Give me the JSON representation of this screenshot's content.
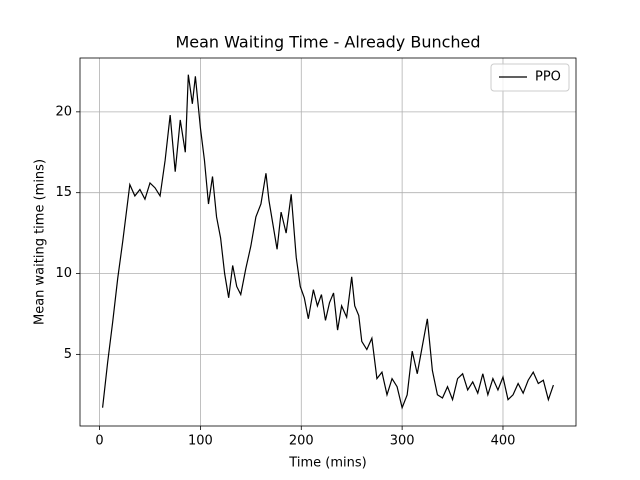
{
  "chart_data": {
    "type": "line",
    "title": "Mean Waiting Time - Already Bunched",
    "x_label": "Time (mins)",
    "y_label": "Mean waiting time (mins)",
    "x": [
      3,
      8,
      13,
      18,
      23,
      28,
      30,
      35,
      40,
      45,
      50,
      55,
      60,
      65,
      70,
      75,
      80,
      85,
      88,
      92,
      95,
      100,
      104,
      108,
      112,
      116,
      120,
      124,
      128,
      132,
      136,
      140,
      145,
      150,
      155,
      160,
      165,
      168,
      172,
      176,
      180,
      185,
      190,
      195,
      199,
      203,
      207,
      212,
      216,
      220,
      224,
      228,
      232,
      236,
      240,
      245,
      250,
      253,
      257,
      260,
      265,
      270,
      275,
      280,
      285,
      290,
      295,
      300,
      305,
      310,
      315,
      320,
      325,
      330,
      335,
      340,
      345,
      350,
      355,
      360,
      365,
      370,
      375,
      380,
      385,
      390,
      395,
      400,
      405,
      410,
      415,
      420,
      425,
      430,
      435,
      440,
      445,
      450
    ],
    "series": [
      {
        "name": "PPO",
        "color": "#000000",
        "values": [
          1.7,
          4.5,
          7,
          9.7,
          12,
          14.5,
          15.5,
          14.8,
          15.2,
          14.6,
          15.6,
          15.3,
          14.8,
          17,
          19.8,
          16.3,
          19.5,
          17.5,
          22.3,
          20.5,
          22.2,
          19,
          17,
          14.3,
          16,
          13.5,
          12.2,
          10,
          8.5,
          10.5,
          9.2,
          8.7,
          10.3,
          11.7,
          13.5,
          14.3,
          16.2,
          14.5,
          13,
          11.5,
          13.8,
          12.5,
          14.9,
          11,
          9.2,
          8.5,
          7.2,
          9,
          8,
          8.7,
          7.1,
          8.2,
          8.8,
          6.5,
          8,
          7.3,
          9.8,
          8,
          7.4,
          5.8,
          5.3,
          6,
          3.5,
          3.9,
          2.5,
          3.5,
          3,
          1.7,
          2.5,
          5.2,
          3.8,
          5.5,
          7.2,
          4,
          2.5,
          2.3,
          3,
          2.2,
          3.5,
          3.8,
          2.8,
          3.3,
          2.6,
          3.8,
          2.5,
          3.5,
          2.8,
          3.6,
          2.2,
          2.5,
          3.2,
          2.6,
          3.4,
          3.9,
          3.2,
          3.4,
          2.2,
          3.1
        ]
      }
    ],
    "xlim": [
      -19.4,
      472.4
    ],
    "ylim": [
      0.57,
      23.33
    ],
    "xticks": [
      0,
      100,
      200,
      300,
      400
    ],
    "yticks": [
      5,
      10,
      15,
      20
    ],
    "grid": true,
    "legend": "upper right"
  }
}
